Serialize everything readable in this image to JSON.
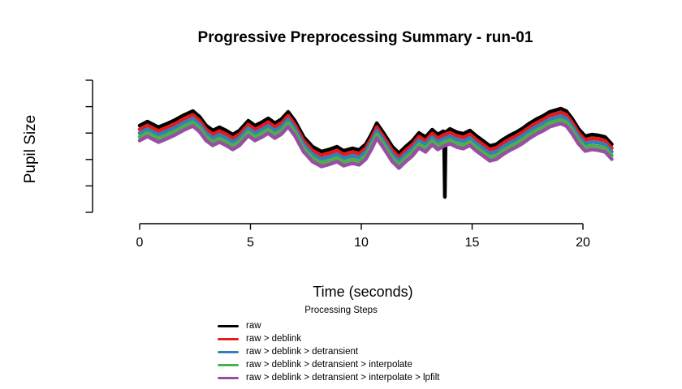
{
  "chart_data": {
    "type": "line",
    "title": "Progressive Preprocessing Summary - run-01",
    "xlabel": "Time (seconds)",
    "ylabel": "Pupil Size",
    "x_ticks": [
      0,
      5,
      10,
      15,
      20
    ],
    "xlim": [
      0,
      21.3
    ],
    "y_axis": {
      "tick_count": 6,
      "tick_labels_shown": false
    },
    "y_units": "arbitrary (y axis unlabeled)",
    "grid": false,
    "legend": {
      "title": "Processing Steps",
      "position": "bottom-center"
    },
    "series": [
      {
        "name": "raw",
        "color": "#000000",
        "offset": 0,
        "has_spike": true
      },
      {
        "name": "raw > deblink",
        "color": "#E41A1C",
        "offset": -4.6,
        "has_spike": false
      },
      {
        "name": "raw > deblink > detransient",
        "color": "#377EB8",
        "offset": -9.2,
        "has_spike": false
      },
      {
        "name": "raw > deblink > detransient > interpolate",
        "color": "#4DAF4A",
        "offset": -13.8,
        "has_spike": false
      },
      {
        "name": "raw > deblink > detransient > interpolate > lpfilt",
        "color": "#984EA3",
        "offset": -18.4,
        "has_spike": false
      }
    ],
    "base_x": [
      0,
      0.35,
      0.85,
      1.2,
      1.6,
      2.0,
      2.4,
      2.7,
      3.0,
      3.3,
      3.6,
      3.9,
      4.2,
      4.5,
      4.9,
      5.2,
      5.5,
      5.8,
      6.1,
      6.4,
      6.7,
      7.0,
      7.4,
      7.8,
      8.2,
      8.6,
      8.9,
      9.2,
      9.6,
      9.9,
      10.2,
      10.45,
      10.7,
      11.0,
      11.4,
      11.7,
      12.0,
      12.3,
      12.6,
      12.9,
      13.2,
      13.45,
      13.7,
      14.0,
      14.3,
      14.6,
      14.9,
      15.2,
      15.5,
      15.8,
      16.1,
      16.4,
      16.7,
      17.0,
      17.3,
      17.6,
      17.9,
      18.2,
      18.5,
      18.75,
      19.0,
      19.25,
      19.5,
      19.8,
      20.1,
      20.4,
      20.7,
      21.0,
      21.3
    ],
    "base_y": [
      121,
      126,
      119,
      123,
      128,
      134,
      139,
      132,
      121,
      115,
      119,
      115,
      110,
      115,
      127,
      121,
      125,
      130,
      124,
      129,
      138,
      127,
      107,
      95,
      89,
      92,
      95,
      90,
      93,
      91,
      98,
      110,
      124,
      112,
      95,
      87,
      95,
      102,
      112,
      107,
      116,
      110,
      114,
      117,
      113,
      111,
      115,
      108,
      102,
      96,
      98,
      104,
      109,
      113,
      118,
      124,
      129,
      133,
      138,
      140,
      142,
      139,
      130,
      117,
      108,
      110,
      109,
      107,
      98
    ],
    "spike_points": [
      [
        13.73,
        113
      ],
      [
        13.77,
        33
      ],
      [
        13.81,
        113
      ]
    ],
    "spike_note": "blink artifact present only in raw series near t=13.8s"
  }
}
